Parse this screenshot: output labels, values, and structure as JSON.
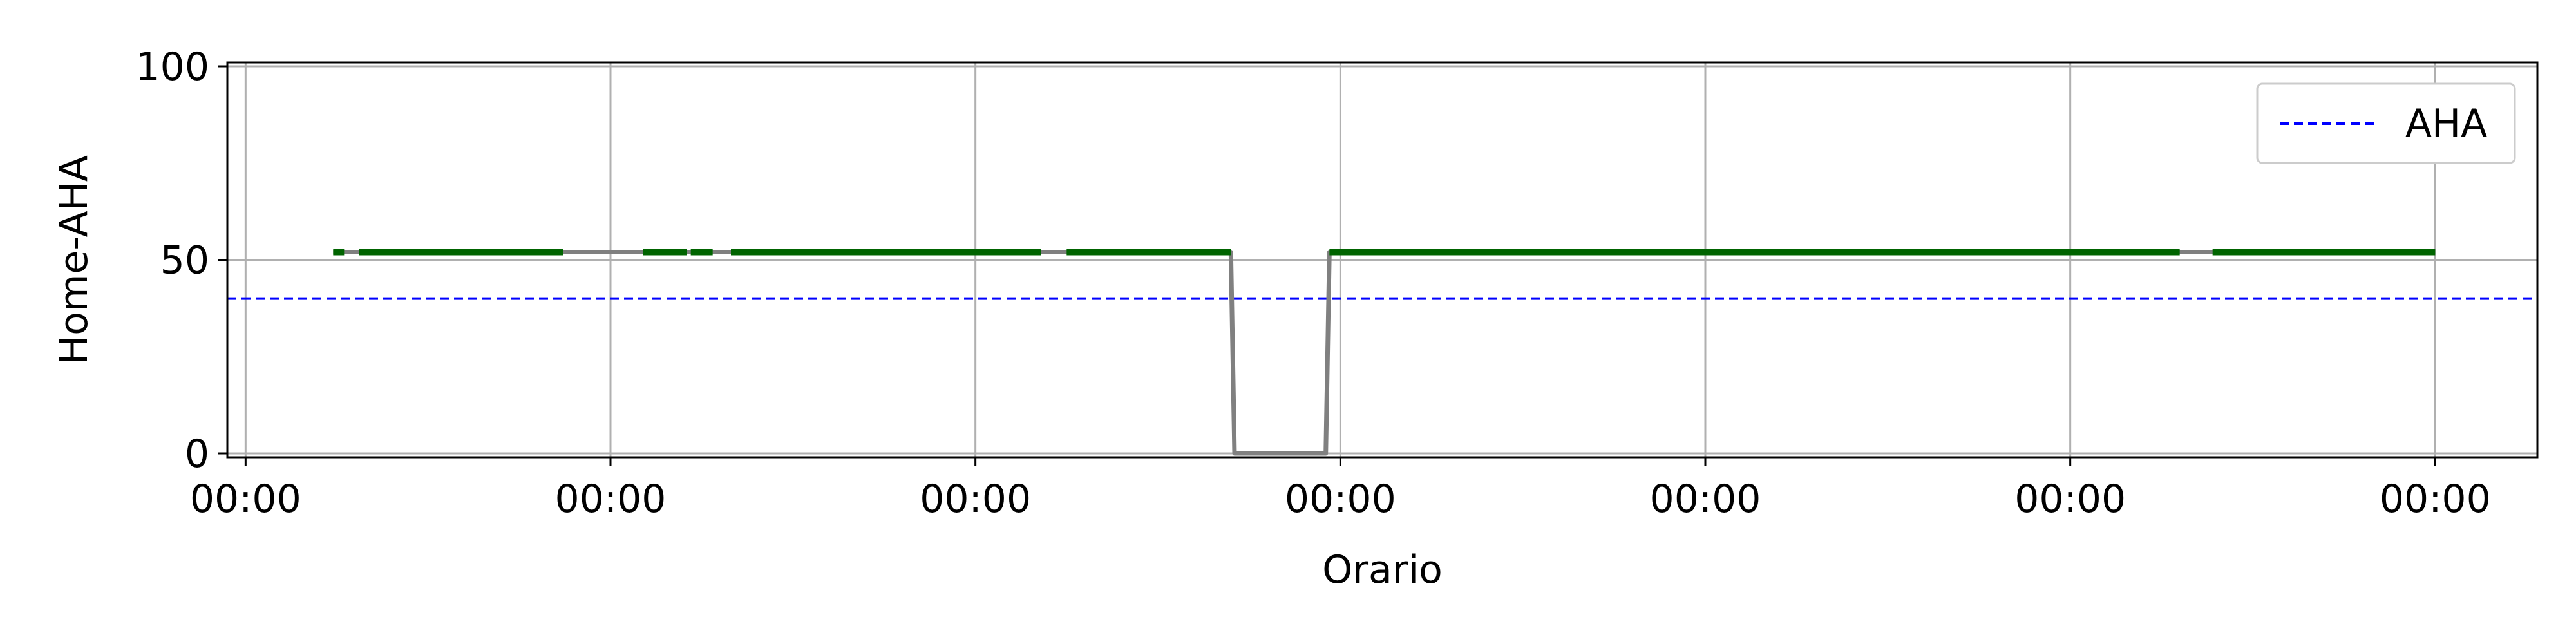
{
  "chart_data": {
    "type": "line",
    "title": "",
    "xlabel": "Orario",
    "ylabel": "Home-AHA",
    "xlim": [
      -0.05,
      6.28
    ],
    "ylim": [
      -1,
      101
    ],
    "x_ticks": [
      0,
      1,
      2,
      3,
      4,
      5,
      6
    ],
    "x_tick_labels": [
      "00:00",
      "00:00",
      "00:00",
      "00:00",
      "00:00",
      "00:00",
      "00:00"
    ],
    "y_ticks": [
      0,
      50,
      100
    ],
    "y_tick_labels": [
      "0",
      "50",
      "100"
    ],
    "grid": true,
    "legend_position": "top-right",
    "threshold": {
      "name": "AHA",
      "value": 40,
      "color": "#0000ff",
      "style": "dashed"
    },
    "series": [
      {
        "color": "#808080",
        "points": [
          [
            0.24,
            52
          ],
          [
            2.7,
            52
          ],
          [
            2.71,
            0
          ],
          [
            2.96,
            0
          ],
          [
            2.97,
            52
          ],
          [
            6.0,
            52
          ]
        ]
      }
    ],
    "highlight_segments": {
      "color": "#006400",
      "value": 52,
      "ranges": [
        [
          0.24,
          0.27
        ],
        [
          0.31,
          0.87
        ],
        [
          1.09,
          1.21
        ],
        [
          1.22,
          1.28
        ],
        [
          1.33,
          2.18
        ],
        [
          2.25,
          2.7
        ],
        [
          2.97,
          5.3
        ],
        [
          5.39,
          6.0
        ]
      ]
    },
    "colors": {
      "grid": "#b0b0b0",
      "axes": "#000000"
    }
  }
}
